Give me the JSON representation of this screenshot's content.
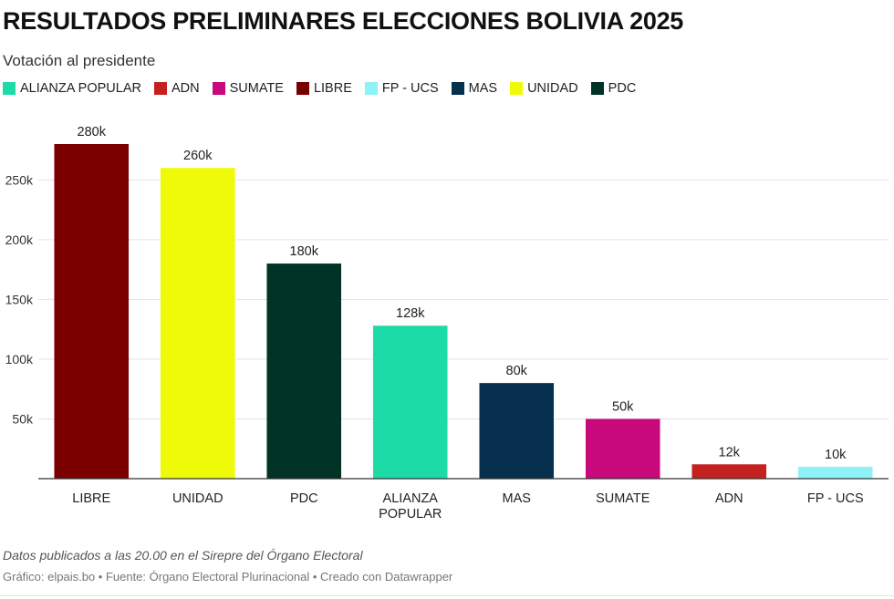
{
  "header": {
    "title": "RESULTADOS PRELIMINARES ELECCIONES BOLIVIA 2025",
    "subtitle": "Votación al presidente"
  },
  "legend": [
    {
      "label": "ALIANZA POPULAR",
      "color": "#1ddba6"
    },
    {
      "label": "ADN",
      "color": "#c42121"
    },
    {
      "label": "SUMATE",
      "color": "#c8097b"
    },
    {
      "label": "LIBRE",
      "color": "#7a0000"
    },
    {
      "label": "FP - UCS",
      "color": "#8ff2f7"
    },
    {
      "label": "MAS",
      "color": "#06304e"
    },
    {
      "label": "UNIDAD",
      "color": "#eefa07"
    },
    {
      "label": "PDC",
      "color": "#003226"
    }
  ],
  "chart_data": {
    "type": "bar",
    "categories": [
      "LIBRE",
      "UNIDAD",
      "PDC",
      "ALIANZA POPULAR",
      "MAS",
      "SUMATE",
      "ADN",
      "FP - UCS"
    ],
    "category_lines": [
      [
        "LIBRE"
      ],
      [
        "UNIDAD"
      ],
      [
        "PDC"
      ],
      [
        "ALIANZA",
        "POPULAR"
      ],
      [
        "MAS"
      ],
      [
        "SUMATE"
      ],
      [
        "ADN"
      ],
      [
        "FP - UCS"
      ]
    ],
    "values": [
      280000,
      260000,
      180000,
      128000,
      80000,
      50000,
      12000,
      10000
    ],
    "value_labels": [
      "280k",
      "260k",
      "180k",
      "128k",
      "80k",
      "50k",
      "12k",
      "10k"
    ],
    "colors": [
      "#7a0000",
      "#eefa07",
      "#003226",
      "#1ddba6",
      "#06304e",
      "#c8097b",
      "#c42121",
      "#8ff2f7"
    ],
    "yticks": [
      50000,
      100000,
      150000,
      200000,
      250000
    ],
    "ytick_labels": [
      "50k",
      "100k",
      "150k",
      "200k",
      "250k"
    ],
    "ylim": [
      0,
      280000
    ],
    "grid": true,
    "legend_position": "top-left"
  },
  "footer": {
    "note": "Datos publicados a las 20.00 en el Sirepre del Órgano Electoral",
    "byline": "Gráfico: elpais.bo • Fuente: Órgano Electoral Plurinacional • Creado con Datawrapper"
  }
}
